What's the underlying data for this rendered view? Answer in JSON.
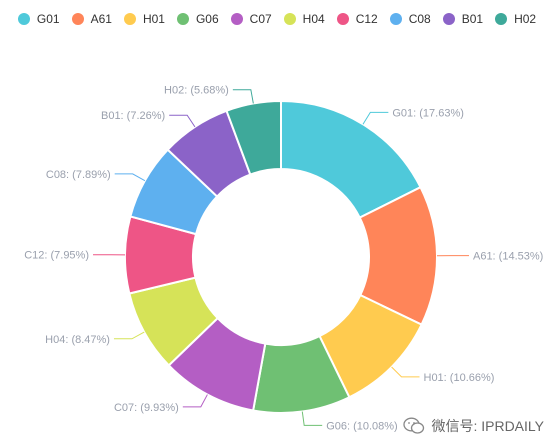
{
  "chart_data": {
    "type": "pie",
    "donut": true,
    "legend_position": "top",
    "categories": [
      "G01",
      "A61",
      "H01",
      "G06",
      "C07",
      "H04",
      "C12",
      "C08",
      "B01",
      "H02"
    ],
    "values": [
      17.63,
      14.53,
      10.66,
      10.08,
      9.93,
      8.47,
      7.95,
      7.89,
      7.26,
      5.68
    ],
    "labels": [
      "G01: (17.63%)",
      "A61: (14.53%)",
      "H01: (10.66%)",
      "G06: (10.08%)",
      "C07: (9.93%)",
      "H04: (8.47%)",
      "C12: (7.95%)",
      "C08: (7.89%)",
      "B01: (7.26%)",
      "H02: (5.68%)"
    ],
    "colors": [
      "#4fc9da",
      "#ff8559",
      "#ffcb4f",
      "#6fc073",
      "#b45ec4",
      "#d6e358",
      "#ee5586",
      "#5eb0ef",
      "#8b63c8",
      "#3ea99a"
    ]
  },
  "watermark": {
    "text": "微信号: IPRDAILY",
    "icon": "wechat-icon"
  }
}
